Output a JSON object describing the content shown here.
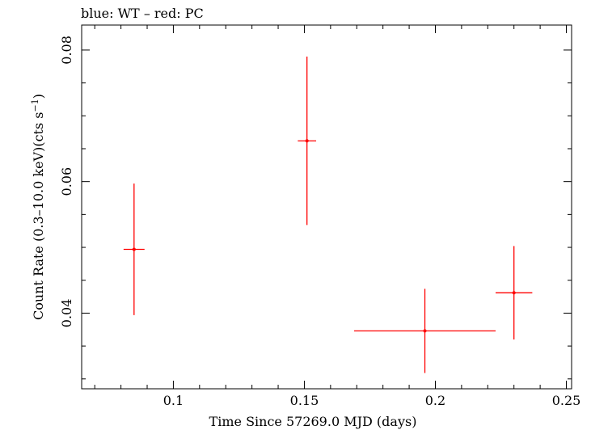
{
  "chart_data": {
    "type": "scatter",
    "title": "blue: WT – red: PC",
    "xlabel": "Time Since 57269.0 MJD (days)",
    "ylabel": "Count Rate (0.3–10.0 keV)(cts s",
    "ylabel_sup": "−1",
    "ylabel_end": ")",
    "xlim": [
      0.065,
      0.252
    ],
    "ylim": [
      0.0285,
      0.0838
    ],
    "x_ticks": [
      {
        "value": 0.1,
        "label": "0.1"
      },
      {
        "value": 0.15,
        "label": "0.15"
      },
      {
        "value": 0.2,
        "label": "0.2"
      },
      {
        "value": 0.25,
        "label": "0.25"
      }
    ],
    "y_ticks": [
      {
        "value": 0.04,
        "label": "0.04"
      },
      {
        "value": 0.06,
        "label": "0.06"
      },
      {
        "value": 0.08,
        "label": "0.08"
      }
    ],
    "x_minor_step": 0.01,
    "y_minor_step": 0.005,
    "grid": false,
    "series": [
      {
        "color": "#ff0000",
        "points": [
          {
            "x": 0.085,
            "xerr_lo": 0.004,
            "xerr_hi": 0.004,
            "y": 0.0497,
            "yerr_lo": 0.01,
            "yerr_hi": 0.01
          },
          {
            "x": 0.151,
            "xerr_lo": 0.0035,
            "xerr_hi": 0.0035,
            "y": 0.0662,
            "yerr_lo": 0.0128,
            "yerr_hi": 0.0128
          },
          {
            "x": 0.196,
            "xerr_lo": 0.027,
            "xerr_hi": 0.027,
            "y": 0.0373,
            "yerr_lo": 0.0064,
            "yerr_hi": 0.0064
          },
          {
            "x": 0.23,
            "xerr_lo": 0.007,
            "xerr_hi": 0.007,
            "y": 0.0431,
            "yerr_lo": 0.0071,
            "yerr_hi": 0.0071
          }
        ]
      }
    ]
  }
}
